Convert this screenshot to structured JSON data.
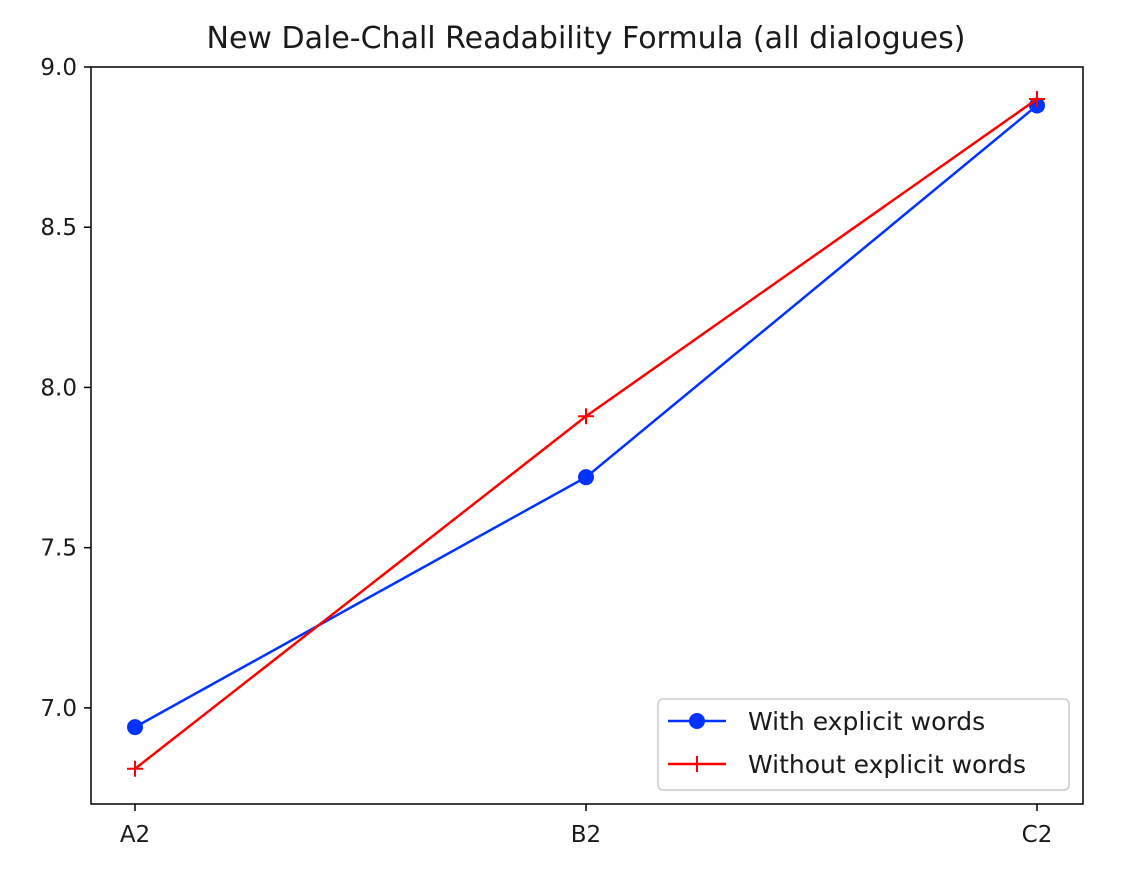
{
  "chart_data": {
    "type": "line",
    "title": "New Dale-Chall Readability Formula (all dialogues)",
    "xlabel": "",
    "ylabel": "",
    "categories": [
      "A2",
      "B2",
      "C2"
    ],
    "ylim": [
      6.7,
      9.0
    ],
    "yticks": [
      7.0,
      7.5,
      8.0,
      8.5,
      9.0
    ],
    "ytick_labels": [
      "7.0",
      "7.5",
      "8.0",
      "8.5",
      "9.0"
    ],
    "grid": false,
    "legend_position": "lower-right",
    "series": [
      {
        "name": "With explicit words",
        "values": [
          6.94,
          7.72,
          8.88
        ],
        "color": "#0033ff",
        "marker": "circle"
      },
      {
        "name": "Without explicit words",
        "values": [
          6.81,
          7.91,
          8.9
        ],
        "color": "#ff0000",
        "marker": "plus"
      }
    ]
  }
}
